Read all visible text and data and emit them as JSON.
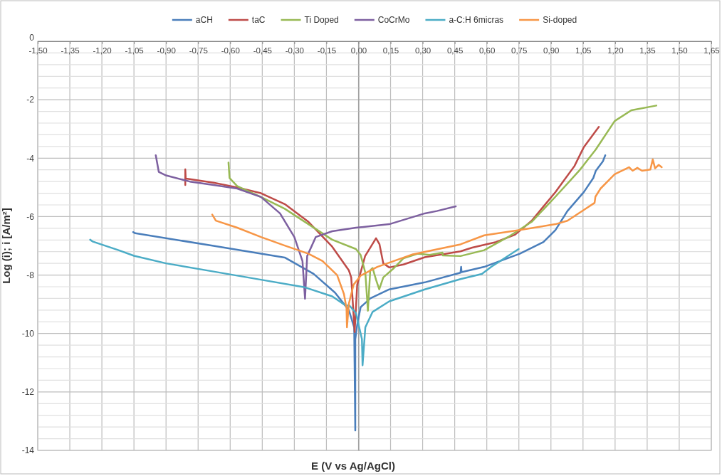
{
  "chart_data": {
    "type": "line",
    "xlabel": "E (V vs Ag/AgCl)",
    "ylabel": "Log (i); i [A/m²]",
    "legend": "top",
    "grid": true,
    "xlim": [
      -1.5,
      1.65
    ],
    "ylim": [
      -14,
      0
    ],
    "xticks": [
      {
        "value": -1.5,
        "label": "-1,50"
      },
      {
        "value": -1.35,
        "label": "-1,35"
      },
      {
        "value": -1.2,
        "label": "-1,20"
      },
      {
        "value": -1.05,
        "label": "-1,05"
      },
      {
        "value": -0.9,
        "label": "-0,90"
      },
      {
        "value": -0.75,
        "label": "-0,75"
      },
      {
        "value": -0.6,
        "label": "-0,60"
      },
      {
        "value": -0.45,
        "label": "-0,45"
      },
      {
        "value": -0.3,
        "label": "-0,30"
      },
      {
        "value": -0.15,
        "label": "-0,15"
      },
      {
        "value": 0,
        "label": "0,00"
      },
      {
        "value": 0.15,
        "label": "0,15"
      },
      {
        "value": 0.3,
        "label": "0,30"
      },
      {
        "value": 0.45,
        "label": "0,45"
      },
      {
        "value": 0.6,
        "label": "0,60"
      },
      {
        "value": 0.75,
        "label": "0,75"
      },
      {
        "value": 0.9,
        "label": "0,90"
      },
      {
        "value": 1.05,
        "label": "1,05"
      },
      {
        "value": 1.2,
        "label": "1,20"
      },
      {
        "value": 1.35,
        "label": "1,35"
      },
      {
        "value": 1.5,
        "label": "1,50"
      },
      {
        "value": 1.65,
        "label": "1,65"
      }
    ],
    "yticks": [
      0,
      {
        "value": -0.4,
        "label": null
      },
      {
        "value": -0.8,
        "label": null
      },
      {
        "value": -1.2,
        "label": null
      },
      {
        "value": -1.6,
        "label": null
      },
      -2,
      {
        "value": -2.4,
        "label": null
      },
      {
        "value": -2.8,
        "label": null
      },
      {
        "value": -3.2,
        "label": null
      },
      {
        "value": -3.6,
        "label": null
      },
      -4,
      {
        "value": -4.4,
        "label": null
      },
      {
        "value": -4.8,
        "label": null
      },
      {
        "value": -5.2,
        "label": null
      },
      {
        "value": -5.6,
        "label": null
      },
      -6,
      {
        "value": -6.4,
        "label": null
      },
      {
        "value": -6.8,
        "label": null
      },
      {
        "value": -7.2,
        "label": null
      },
      {
        "value": -7.6,
        "label": null
      },
      -8,
      {
        "value": -8.4,
        "label": null
      },
      {
        "value": -8.8,
        "label": null
      },
      {
        "value": -9.2,
        "label": null
      },
      {
        "value": -9.6,
        "label": null
      },
      -10,
      {
        "value": -10.4,
        "label": null
      },
      {
        "value": -10.8,
        "label": null
      },
      {
        "value": -11.2,
        "label": null
      },
      {
        "value": -11.6,
        "label": null
      },
      -12,
      {
        "value": -12.4,
        "label": null
      },
      {
        "value": -12.8,
        "label": null
      },
      {
        "value": -13.2,
        "label": null
      },
      {
        "value": -13.6,
        "label": null
      },
      -14
    ],
    "series": [
      {
        "name": "aCH",
        "color": "#4a7ebb",
        "x": [
          -1.054,
          -1.044,
          -0.678,
          -0.345,
          -0.21,
          -0.11,
          -0.045,
          -0.02,
          -0.015,
          -0.015,
          -0.006,
          0.01,
          0.055,
          0.144,
          0.31,
          0.477,
          0.48,
          0.482,
          0.588,
          0.754,
          0.865,
          0.921,
          0.977,
          1.054,
          1.098,
          1.11,
          1.143,
          1.154
        ],
        "values": [
          -6.53,
          -6.57,
          -7.0,
          -7.4,
          -7.96,
          -8.6,
          -9.2,
          -9.8,
          -13.32,
          -10.2,
          -9.7,
          -9.1,
          -8.8,
          -8.49,
          -8.25,
          -7.92,
          -7.72,
          -7.9,
          -7.72,
          -7.27,
          -6.87,
          -6.46,
          -5.81,
          -5.16,
          -4.68,
          -4.43,
          -4.11,
          -3.9
        ]
      },
      {
        "name": "taC",
        "color": "#be4b48",
        "x": [
          -0.81,
          -0.81,
          -0.808,
          -0.789,
          -0.678,
          -0.567,
          -0.456,
          -0.345,
          -0.234,
          -0.123,
          -0.045,
          -0.034,
          -0.018,
          -0.006,
          0.031,
          0.082,
          0.098,
          0.116,
          0.144,
          0.21,
          0.31,
          0.477,
          0.532,
          0.643,
          0.732,
          0.81,
          0.921,
          1.01,
          1.054,
          1.124
        ],
        "values": [
          -4.92,
          -4.38,
          -4.7,
          -4.72,
          -4.84,
          -5.0,
          -5.2,
          -5.57,
          -6.18,
          -7.03,
          -7.84,
          -8.08,
          -9.95,
          -8.33,
          -7.35,
          -6.74,
          -6.94,
          -7.6,
          -7.74,
          -7.64,
          -7.39,
          -7.19,
          -7.06,
          -6.87,
          -6.62,
          -6.14,
          -5.16,
          -4.27,
          -3.62,
          -2.93
        ]
      },
      {
        "name": "Ti Doped",
        "color": "#98b954",
        "x": [
          -0.608,
          -0.603,
          -0.567,
          -0.456,
          -0.345,
          -0.234,
          -0.123,
          -0.012,
          0.01,
          0.032,
          0.044,
          0.055,
          0.066,
          0.082,
          0.097,
          0.116,
          0.166,
          0.21,
          0.277,
          0.332,
          0.393,
          0.394,
          0.477,
          0.588,
          0.699,
          0.81,
          0.921,
          1.032,
          1.11,
          1.198,
          1.276,
          1.393
        ],
        "values": [
          -4.15,
          -4.68,
          -4.96,
          -5.33,
          -5.73,
          -6.26,
          -6.79,
          -7.11,
          -7.31,
          -7.92,
          -9.22,
          -7.84,
          -7.76,
          -8.16,
          -8.49,
          -8.08,
          -7.76,
          -7.43,
          -7.27,
          -7.31,
          -7.23,
          -7.33,
          -7.35,
          -7.15,
          -6.7,
          -6.18,
          -5.32,
          -4.43,
          -3.7,
          -2.73,
          -2.36,
          -2.2
        ]
      },
      {
        "name": "CoCrMo",
        "color": "#7d60a0",
        "x": [
          -0.948,
          -0.934,
          -0.9,
          -0.789,
          -0.678,
          -0.567,
          -0.456,
          -0.367,
          -0.3,
          -0.262,
          -0.25,
          -0.24,
          -0.2,
          -0.123,
          -0.012,
          0.144,
          0.31,
          0.366,
          0.455
        ],
        "values": [
          -3.9,
          -4.47,
          -4.59,
          -4.8,
          -4.92,
          -5.04,
          -5.33,
          -5.89,
          -6.7,
          -7.52,
          -8.81,
          -7.35,
          -6.7,
          -6.5,
          -6.38,
          -6.26,
          -5.89,
          -5.81,
          -5.65
        ]
      },
      {
        "name": "a-C:H 6micras",
        "color": "#4bacc6",
        "x": [
          -1.255,
          -1.244,
          -1.122,
          -1.05,
          -0.9,
          -0.678,
          -0.456,
          -0.256,
          -0.123,
          -0.056,
          -0.045,
          -0.012,
          0.016,
          0.019,
          0.032,
          0.066,
          0.144,
          0.31,
          0.477,
          0.577,
          0.621,
          0.749
        ],
        "values": [
          -6.79,
          -6.85,
          -7.15,
          -7.34,
          -7.6,
          -7.88,
          -8.16,
          -8.41,
          -8.73,
          -9.06,
          -9.02,
          -9.3,
          -10.19,
          -11.09,
          -9.79,
          -9.26,
          -8.9,
          -8.49,
          -8.14,
          -7.96,
          -7.72,
          -7.11
        ]
      },
      {
        "name": "Si-doped",
        "color": "#f79646",
        "x": [
          -0.684,
          -0.667,
          -0.567,
          -0.456,
          -0.345,
          -0.234,
          -0.168,
          -0.1,
          -0.068,
          -0.056,
          -0.054,
          -0.045,
          -0.023,
          0.01,
          0.088,
          0.254,
          0.477,
          0.588,
          0.754,
          0.921,
          0.977,
          1.054,
          1.104,
          1.108,
          1.132,
          1.198,
          1.265,
          1.282,
          1.304,
          1.326,
          1.365,
          1.376,
          1.387,
          1.404,
          1.418
        ],
        "values": [
          -5.93,
          -6.14,
          -6.38,
          -6.7,
          -6.99,
          -7.27,
          -7.52,
          -8.0,
          -8.65,
          -9.14,
          -9.79,
          -8.98,
          -8.33,
          -8.02,
          -7.72,
          -7.29,
          -6.95,
          -6.64,
          -6.46,
          -6.26,
          -6.14,
          -5.77,
          -5.53,
          -5.32,
          -5.04,
          -4.55,
          -4.31,
          -4.43,
          -4.33,
          -4.43,
          -4.39,
          -4.04,
          -4.35,
          -4.23,
          -4.31
        ]
      }
    ]
  }
}
